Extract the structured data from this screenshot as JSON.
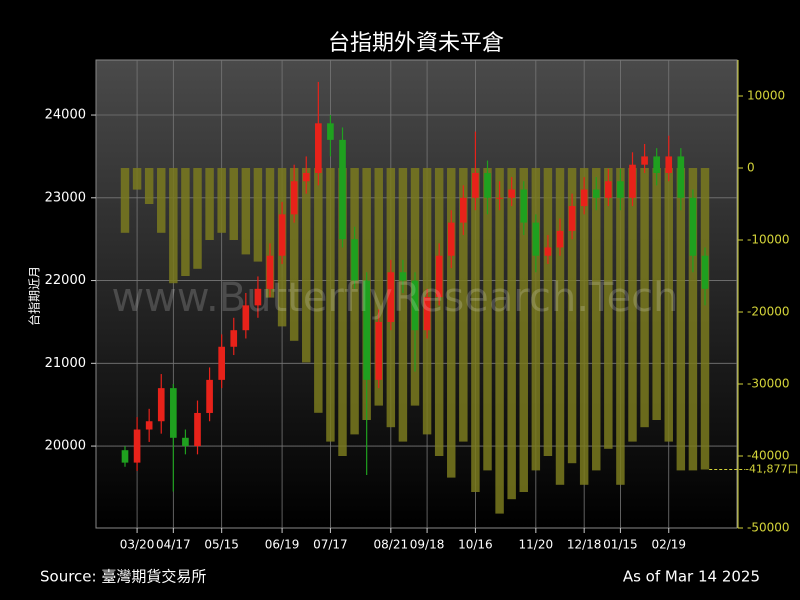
{
  "chart_data": {
    "type": "candlestick",
    "title": "台指期外資未平倉",
    "ylabel": "台指期近月",
    "watermark": "www.ButterflyResearch.Tech",
    "source": "Source: 臺灣期貨交易所",
    "as_of": "As of Mar 14 2025",
    "up_color": "#e8221a",
    "down_color": "#1fa01f",
    "categories": [
      null,
      "03/20",
      null,
      null,
      "04/17",
      null,
      null,
      null,
      "05/15",
      null,
      null,
      null,
      null,
      "06/19",
      null,
      null,
      null,
      "07/17",
      null,
      null,
      null,
      null,
      "08/21",
      null,
      null,
      "09/18",
      null,
      null,
      null,
      "10/16",
      null,
      null,
      null,
      null,
      "11/20",
      null,
      null,
      null,
      "12/18",
      null,
      null,
      "01/15",
      null,
      null,
      null,
      "02/19",
      null,
      null,
      null
    ],
    "open": [
      19950,
      19800,
      20200,
      20300,
      20700,
      20100,
      20000,
      20400,
      20800,
      21200,
      21400,
      21700,
      21900,
      22300,
      22800,
      23200,
      23300,
      23900,
      23700,
      22500,
      22000,
      20800,
      21500,
      22100,
      22000,
      21400,
      21800,
      22300,
      22700,
      23000,
      23300,
      23000,
      23000,
      23100,
      22700,
      22300,
      22400,
      22600,
      22900,
      23100,
      23000,
      23200,
      23000,
      23400,
      23500,
      23300,
      23500,
      23000,
      22300
    ],
    "high": [
      20000,
      20350,
      20450,
      20870,
      20750,
      20200,
      20550,
      20950,
      21350,
      21550,
      21850,
      22050,
      22450,
      22950,
      23400,
      23500,
      24400,
      24000,
      23850,
      22650,
      22100,
      21650,
      22250,
      22250,
      22100,
      21900,
      22450,
      22850,
      23150,
      23800,
      23450,
      23200,
      23250,
      23200,
      22800,
      22550,
      22750,
      23050,
      23250,
      23250,
      23350,
      23350,
      23550,
      23650,
      23600,
      23750,
      23600,
      23100,
      22400
    ],
    "low": [
      19750,
      19700,
      20050,
      20150,
      19450,
      19900,
      19900,
      20300,
      20700,
      21100,
      21300,
      21550,
      21800,
      22200,
      22700,
      23050,
      23150,
      23500,
      22400,
      21900,
      19650,
      20700,
      21400,
      21850,
      20900,
      21300,
      21700,
      22150,
      22550,
      22850,
      22800,
      22850,
      22900,
      22550,
      22100,
      22200,
      22300,
      22500,
      22800,
      22850,
      22900,
      22850,
      22900,
      23300,
      23150,
      23200,
      22850,
      22100,
      21700
    ],
    "close": [
      19800,
      20200,
      20300,
      20700,
      20100,
      20000,
      20400,
      20800,
      21200,
      21400,
      21700,
      21900,
      22300,
      22800,
      23200,
      23300,
      23900,
      23700,
      22500,
      22000,
      20800,
      21500,
      22100,
      22000,
      21400,
      21800,
      22300,
      22700,
      23000,
      23300,
      23000,
      23000,
      23100,
      22700,
      22300,
      22400,
      22600,
      22900,
      23100,
      23000,
      23200,
      23000,
      23400,
      23500,
      23300,
      23500,
      23000,
      22300,
      21900
    ],
    "ylim": [
      19010,
      24665
    ],
    "yticks": [
      20000,
      21000,
      22000,
      23000,
      24000
    ],
    "bars": {
      "axis": "y2",
      "color": "#7a7a1e",
      "values": [
        -9000,
        -3000,
        -5000,
        -9000,
        -16000,
        -15000,
        -14000,
        -10000,
        -9000,
        -10000,
        -12000,
        -13000,
        -18000,
        -22000,
        -24000,
        -27000,
        -34000,
        -38000,
        -40000,
        -37000,
        -35000,
        -33000,
        -36000,
        -38000,
        -33000,
        -37000,
        -40000,
        -43000,
        -38000,
        -45000,
        -42000,
        -48000,
        -46000,
        -45000,
        -42000,
        -40000,
        -44000,
        -41000,
        -44000,
        -42000,
        -39000,
        -44000,
        -38000,
        -36000,
        -35000,
        -38000,
        -42000,
        -42000,
        -41877
      ],
      "value_labels": [
        null,
        null,
        null,
        null,
        null,
        null,
        null,
        null,
        null,
        null,
        null,
        null,
        null,
        null,
        null,
        null,
        null,
        null,
        null,
        null,
        null,
        null,
        null,
        null,
        null,
        null,
        null,
        null,
        null,
        null,
        null,
        null,
        null,
        null,
        null,
        null,
        null,
        null,
        null,
        null,
        null,
        null,
        null,
        null,
        null,
        null,
        null,
        null,
        "-41,877口"
      ]
    },
    "y2lim": [
      -50000,
      15000
    ],
    "y2ticks": [
      -50000,
      -40000,
      -30000,
      -20000,
      -10000,
      0,
      10000
    ],
    "y2_color": "#d4d43a",
    "grid": true
  }
}
